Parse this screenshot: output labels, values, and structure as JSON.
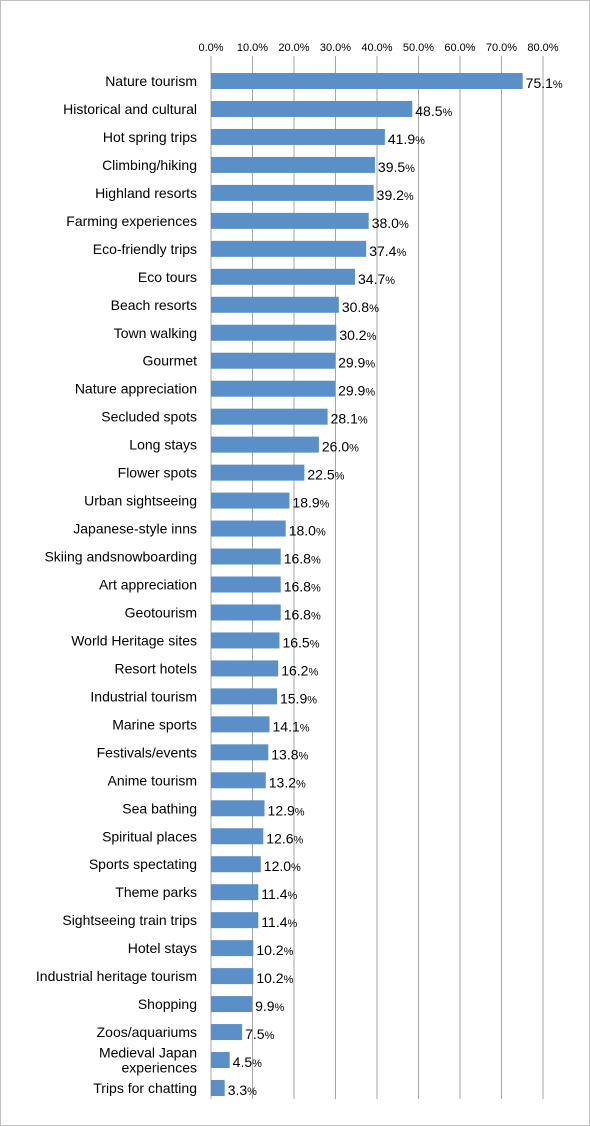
{
  "chart_data": {
    "type": "bar",
    "orientation": "horizontal",
    "categories": [
      "Nature tourism",
      "Historical and cultural",
      "Hot spring trips",
      "Climbing/hiking",
      "Highland resorts",
      "Farming experiences",
      "Eco-friendly trips",
      "Eco tours",
      "Beach resorts",
      "Town walking",
      "Gourmet",
      "Nature appreciation",
      "Secluded spots",
      "Long stays",
      "Flower spots",
      "Urban sightseeing",
      "Japanese-style inns",
      "Skiing andsnowboarding",
      "Art appreciation",
      "Geotourism",
      "World Heritage sites",
      "Resort hotels",
      "Industrial tourism",
      "Marine sports",
      "Festivals/events",
      "Anime tourism",
      "Sea bathing",
      "Spiritual places",
      "Sports spectating",
      "Theme parks",
      "Sightseeing train trips",
      "Hotel stays",
      "Industrial heritage tourism",
      "Shopping",
      "Zoos/aquariums",
      "Medieval Japan experiences",
      "Trips for chatting"
    ],
    "category_lines": {
      "Medieval Japan experiences": [
        "Medieval Japan",
        "experiences"
      ]
    },
    "values": [
      75.1,
      48.5,
      41.9,
      39.5,
      39.2,
      38.0,
      37.4,
      34.7,
      30.8,
      30.2,
      29.9,
      29.9,
      28.1,
      26.0,
      22.5,
      18.9,
      18.0,
      16.8,
      16.8,
      16.8,
      16.5,
      16.2,
      15.9,
      14.1,
      13.8,
      13.2,
      12.9,
      12.6,
      12.0,
      11.4,
      11.4,
      10.2,
      10.2,
      9.9,
      7.5,
      4.5,
      3.3
    ],
    "value_labels": [
      "75.1",
      "48.5",
      "41.9",
      "39.5",
      "39.2",
      "38.0",
      "37.4",
      "34.7",
      "30.8",
      "30.2",
      "29.9",
      "29.9",
      "28.1",
      "26.0",
      "22.5",
      "18.9",
      "18.0",
      "16.8",
      "16.8",
      "16.8",
      "16.5",
      "16.2",
      "15.9",
      "14.1",
      "13.8",
      "13.2",
      "12.9",
      "12.6",
      "12.0",
      "11.4",
      "11.4",
      "10.2",
      "10.2",
      "9.9",
      "7.5",
      "4.5",
      "3.3"
    ],
    "value_suffix": "%",
    "xlim": [
      0,
      80
    ],
    "x_ticks": [
      "0.0%",
      "10.0%",
      "20.0%",
      "30.0%",
      "40.0%",
      "50.0%",
      "60.0%",
      "70.0%",
      "80.0%"
    ],
    "x_axis_position": "top",
    "grid": true,
    "legend": "none",
    "colors": {
      "bar": "#5B8FC7",
      "gridline": "#A6A6A6",
      "frame": "#BFBFBF"
    }
  }
}
